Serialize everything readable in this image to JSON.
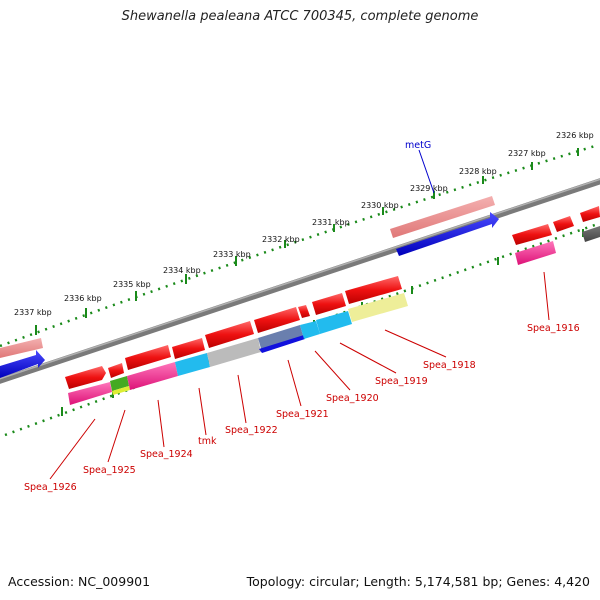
{
  "title": "Shewanella pealeana ATCC 700345, complete genome",
  "footer": {
    "accession": "Accession: NC_009901",
    "summary": "Topology: circular; Length: 5,174,581 bp; Genes: 4,420"
  },
  "ruler_ticks": [
    "2326 kbp",
    "2327 kbp",
    "2328 kbp",
    "2329 kbp",
    "2330 kbp",
    "2331 kbp",
    "2332 kbp",
    "2333 kbp",
    "2334 kbp",
    "2335 kbp",
    "2336 kbp",
    "2337 kbp"
  ],
  "gene_labels": {
    "metG": "metG",
    "spea_1916": "Spea_1916",
    "spea_1918": "Spea_1918",
    "spea_1919": "Spea_1919",
    "spea_1920": "Spea_1920",
    "spea_1921": "Spea_1921",
    "spea_1922": "Spea_1922",
    "tmk": "tmk",
    "spea_1924": "Spea_1924",
    "spea_1925": "Spea_1925",
    "spea_1926": "Spea_1926"
  },
  "colors": {
    "forward_gene": "#ee1111",
    "backbone": "#808080",
    "ruler_tick": "#1a8a1a",
    "label_red": "#cc0000",
    "label_blue": "#0000cc",
    "pink": "#ff5599",
    "blue": "#1111dd",
    "cyan": "#22bbee",
    "yellow": "#eeee99",
    "grey": "#bbbbbb"
  }
}
